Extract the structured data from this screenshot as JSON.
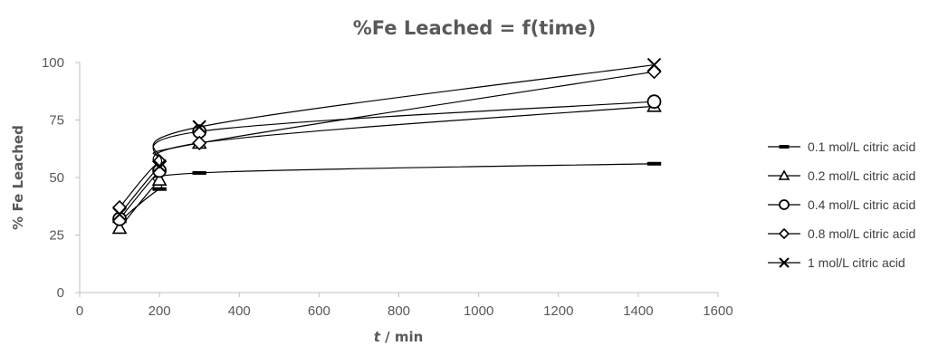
{
  "chart_data": {
    "type": "line",
    "title": "%Fe Leached = f(time)",
    "xlabel_italic": "t",
    "xlabel_rest": " / min",
    "ylabel": "% Fe Leached",
    "xlim": [
      0,
      1600
    ],
    "ylim": [
      0,
      100
    ],
    "xticks": [
      0,
      200,
      400,
      600,
      800,
      1000,
      1200,
      1400,
      1600
    ],
    "yticks": [
      0,
      25,
      50,
      75,
      100
    ],
    "grid": false,
    "legend_position": "right",
    "line_color": "#000000",
    "axis_color": "#bfbfbf",
    "text_color": "#595959",
    "x": [
      100,
      200,
      300,
      1440
    ],
    "series": [
      {
        "name": "0.1 mol/L citric acid",
        "marker": "dash",
        "values": [
          31,
          45,
          52,
          56
        ]
      },
      {
        "name": "0.2 mol/L citric acid",
        "marker": "triangle",
        "values": [
          28,
          49,
          65,
          81
        ]
      },
      {
        "name": "0.4 mol/L citric acid",
        "marker": "circle",
        "values": [
          32,
          53,
          70,
          83
        ]
      },
      {
        "name": "0.8 mol/L citric acid",
        "marker": "diamond",
        "values": [
          37,
          57,
          65,
          96
        ]
      },
      {
        "name": "1 mol/L citric acid",
        "marker": "cross",
        "values": [
          34,
          55,
          72,
          99
        ]
      }
    ]
  }
}
